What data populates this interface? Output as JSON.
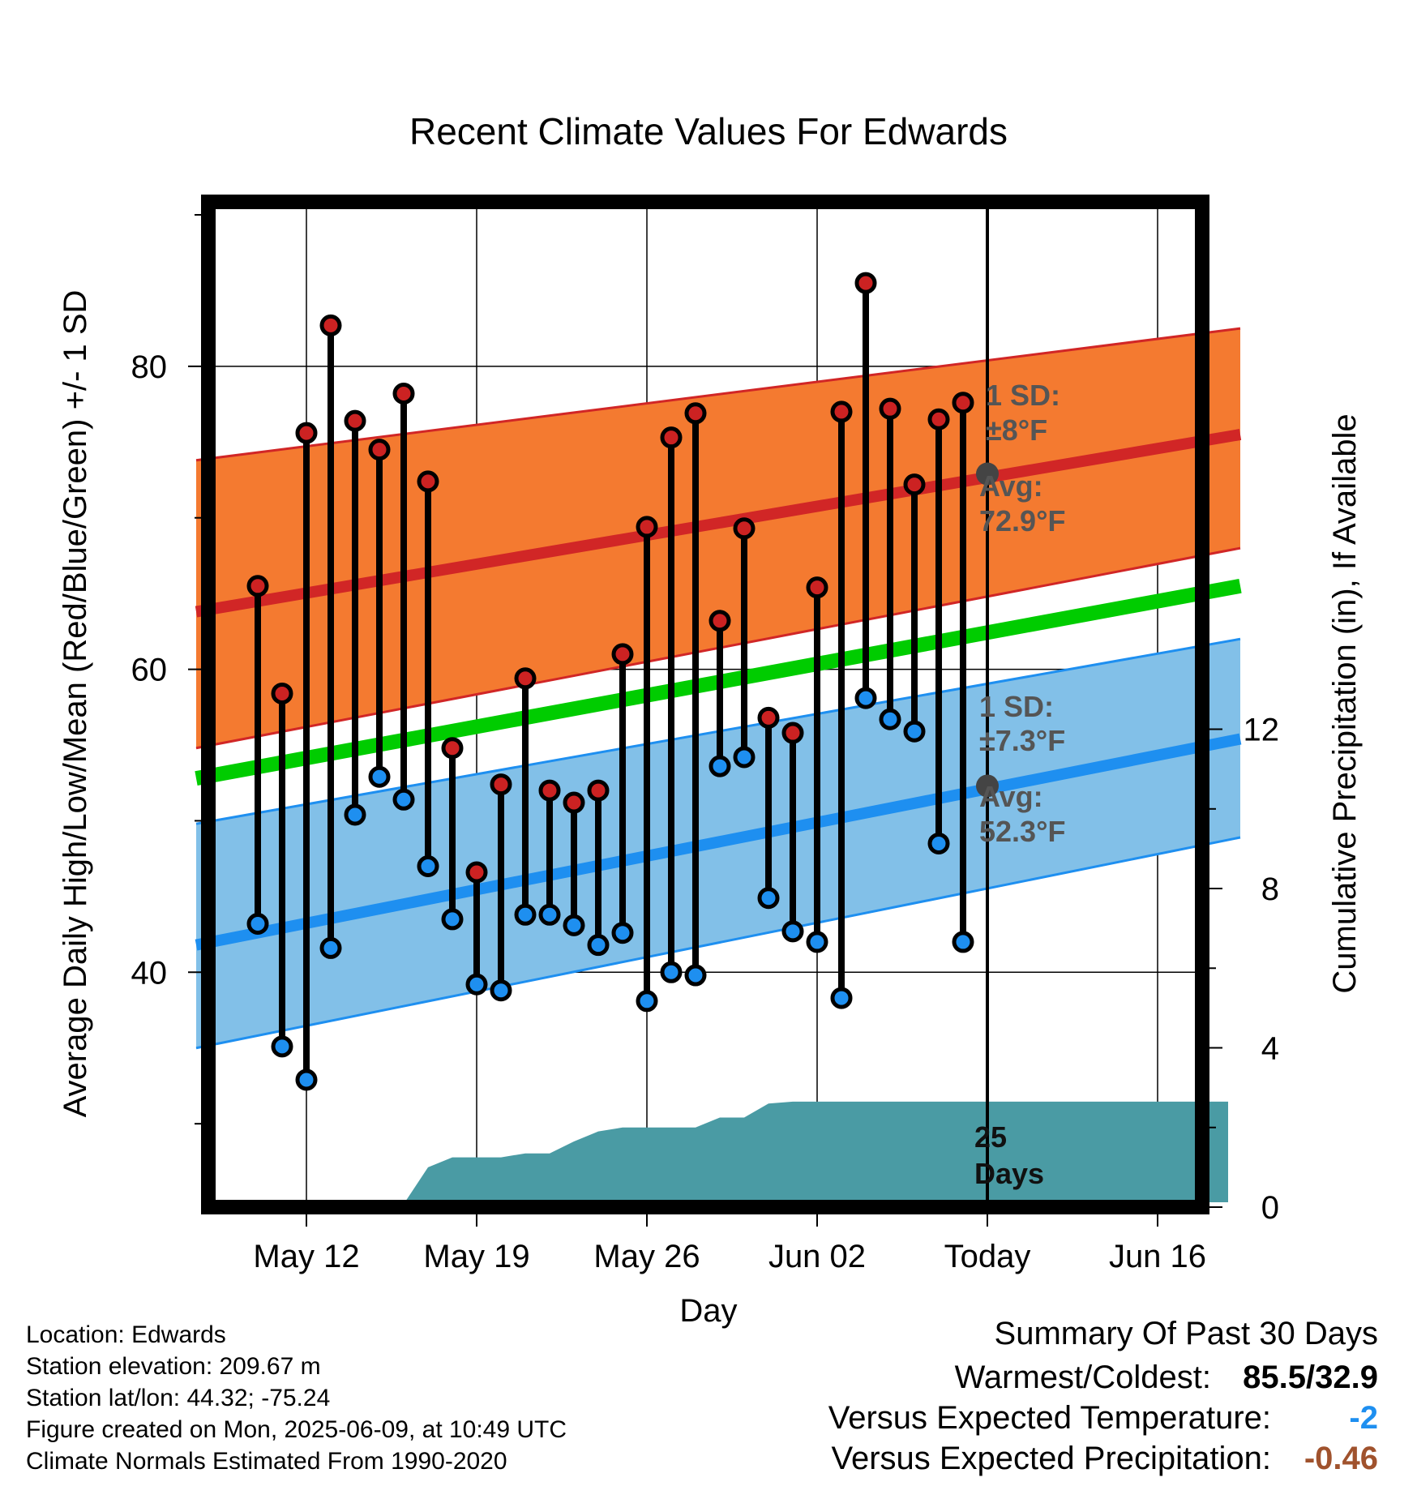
{
  "chart_data": {
    "type": "line",
    "title": "Recent Climate Values For Edwards",
    "xlabel": "Day",
    "ylabel_left": "Average Daily High/Low/Mean (Red/Blue/Green) +/- 1 SD",
    "ylabel_right": "Cumulative Precipitation (in), If Available",
    "x_ticks": [
      "May 12",
      "May 19",
      "May 26",
      "Jun 02",
      "Today",
      "Jun 16"
    ],
    "y_ticks_left": [
      "40",
      "60",
      "80"
    ],
    "y_ticks_right": [
      "0",
      "4",
      "8",
      "12"
    ],
    "ylim_left": [
      25.5,
      90.8
    ],
    "ylim_right": [
      0,
      25
    ],
    "xlim": [
      0,
      41
    ],
    "today_index": 30,
    "grid": true,
    "colors": {
      "high_marker": "#cc2222",
      "low_marker": "#1e8ff0",
      "high_band": "#f47a30",
      "high_avg_line": "#d12626",
      "low_band": "#82c0e8",
      "low_avg_line": "#1e8ff0",
      "mean_line": "#00cc00",
      "precip_fill": "#4a9ba4",
      "annotation_text": "#555555",
      "today_dot": "#444444",
      "temp_anomaly": "#1e8ff0",
      "precip_anomaly": "#a0522d"
    },
    "normals": {
      "x": [
        -1,
        41
      ],
      "high_avg": [
        63.8,
        75.5
      ],
      "high_upper": [
        73.8,
        82.5
      ],
      "high_lower": [
        54.8,
        68.0
      ],
      "low_avg": [
        41.8,
        55.4
      ],
      "low_upper": [
        49.8,
        62.0
      ],
      "low_lower": [
        35.0,
        48.9
      ],
      "mean": [
        52.8,
        65.5
      ]
    },
    "days": [
      {
        "x": 1,
        "high": 65.5,
        "low": 43.2
      },
      {
        "x": 2,
        "high": 58.4,
        "low": 35.1
      },
      {
        "x": 3,
        "high": 75.6,
        "low": 32.9
      },
      {
        "x": 4,
        "high": 82.7,
        "low": 41.6
      },
      {
        "x": 5,
        "high": 76.4,
        "low": 50.4
      },
      {
        "x": 6,
        "high": 74.5,
        "low": 52.9
      },
      {
        "x": 7,
        "high": 78.2,
        "low": 51.4
      },
      {
        "x": 8,
        "high": 72.4,
        "low": 47.0
      },
      {
        "x": 9,
        "high": 54.8,
        "low": 43.5
      },
      {
        "x": 10,
        "high": 46.6,
        "low": 39.2
      },
      {
        "x": 11,
        "high": 52.4,
        "low": 38.8
      },
      {
        "x": 12,
        "high": 59.4,
        "low": 43.8
      },
      {
        "x": 13,
        "high": 52.0,
        "low": 43.8
      },
      {
        "x": 14,
        "high": 51.2,
        "low": 43.1
      },
      {
        "x": 15,
        "high": 52.0,
        "low": 41.8
      },
      {
        "x": 16,
        "high": 61.0,
        "low": 42.6
      },
      {
        "x": 17,
        "high": 69.4,
        "low": 38.1
      },
      {
        "x": 18,
        "high": 75.3,
        "low": 40.0
      },
      {
        "x": 19,
        "high": 76.9,
        "low": 39.8
      },
      {
        "x": 20,
        "high": 63.2,
        "low": 53.6
      },
      {
        "x": 21,
        "high": 69.3,
        "low": 54.2
      },
      {
        "x": 22,
        "high": 56.8,
        "low": 44.9
      },
      {
        "x": 23,
        "high": 55.8,
        "low": 42.7
      },
      {
        "x": 24,
        "high": 65.4,
        "low": 42.0
      },
      {
        "x": 25,
        "high": 77.0,
        "low": 38.3
      },
      {
        "x": 26,
        "high": 85.5,
        "low": 58.1
      },
      {
        "x": 27,
        "high": 77.2,
        "low": 56.7
      },
      {
        "x": 28,
        "high": 72.2,
        "low": 55.9
      },
      {
        "x": 29,
        "high": 76.5,
        "low": 48.5
      },
      {
        "x": 30,
        "high": 77.6,
        "low": 42.0
      }
    ],
    "precip": {
      "x": [
        0.95,
        7.1,
        8.0,
        9.0,
        10.0,
        11.0,
        12.0,
        13.0,
        14.0,
        15.0,
        16.0,
        17.0,
        18.0,
        19.0,
        20.0,
        21.0,
        22.0,
        23.0,
        24.0,
        30.0,
        40.9
      ],
      "y": [
        0.17,
        0.17,
        1.0,
        1.25,
        1.25,
        1.25,
        1.35,
        1.35,
        1.65,
        1.9,
        2.0,
        2.0,
        2.0,
        2.0,
        2.25,
        2.25,
        2.6,
        2.65,
        2.65,
        2.65,
        2.65
      ]
    },
    "annotations": {
      "high_sd_label": "1 SD:",
      "high_sd_value": "±8°F",
      "high_avg_label": "Avg:",
      "high_avg_value": "72.9°F",
      "low_sd_label": "1 SD:",
      "low_sd_value": "±7.3°F",
      "low_avg_label": "Avg:",
      "low_avg_value": "52.3°F",
      "today_high_avg": 72.9,
      "today_low_avg": 52.3,
      "precip_days_line1": "25",
      "precip_days_line2": "Days"
    }
  },
  "footer": {
    "left": [
      "Location: Edwards",
      "Station elevation: 209.67 m",
      "Station lat/lon: 44.32; -75.24",
      "Figure created on Mon, 2025-06-09, at 10:49 UTC",
      "Climate Normals Estimated From 1990-2020"
    ],
    "summary_title": "Summary Of Past 30 Days",
    "warmest_label": "Warmest/Coldest:",
    "warmest_value": "85.5/32.9",
    "temp_label": "Versus Expected Temperature:",
    "temp_value": "-2",
    "precip_label": "Versus Expected Precipitation:",
    "precip_value": "-0.46"
  }
}
